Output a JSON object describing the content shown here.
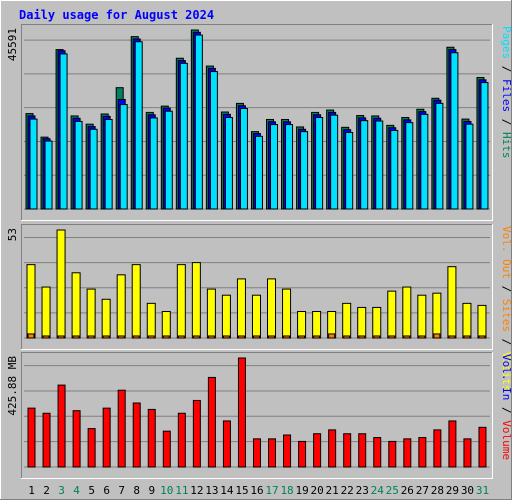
{
  "title": "Daily usage for August 2024",
  "colors": {
    "background": "#c0c0c0",
    "title": "#0000ff",
    "hits": "#00805c",
    "files": "#0000ff",
    "pages": "#00e0ff",
    "visits": "#ffff00",
    "sites": "#ff8000",
    "volume": "#ff0000",
    "weekend_day": "#00805c",
    "weekday": "#000000"
  },
  "chart_data": [
    {
      "type": "bar",
      "name": "top",
      "ylabel": "45591",
      "legend": [
        "Hits",
        "Files",
        "Pages"
      ],
      "legend_separator": " / ",
      "ymax": 45591,
      "x": [
        1,
        2,
        3,
        4,
        5,
        6,
        7,
        8,
        9,
        10,
        11,
        12,
        13,
        14,
        15,
        16,
        17,
        18,
        19,
        20,
        21,
        22,
        23,
        24,
        25,
        26,
        27,
        28,
        29,
        30,
        31
      ],
      "series": [
        {
          "name": "Hits",
          "values": [
            24300,
            18300,
            40600,
            23700,
            21600,
            24200,
            30900,
            43900,
            24600,
            26200,
            38400,
            45591,
            36400,
            24700,
            26900,
            19700,
            22800,
            22800,
            20900,
            24600,
            25200,
            20800,
            23800,
            23700,
            21300,
            23300,
            25400,
            28200,
            41200,
            22900,
            33500
          ]
        },
        {
          "name": "Files",
          "values": [
            23700,
            17900,
            40300,
            23100,
            21000,
            23600,
            27900,
            43300,
            24000,
            25700,
            37800,
            45000,
            35800,
            24100,
            26300,
            19200,
            22200,
            22200,
            20300,
            24000,
            24600,
            20200,
            23200,
            23100,
            20700,
            22700,
            24800,
            27700,
            40600,
            22300,
            32900
          ]
        },
        {
          "name": "Pages",
          "values": [
            22900,
            17300,
            39500,
            22300,
            20300,
            22800,
            26600,
            42600,
            23200,
            24900,
            37100,
            44300,
            35000,
            23300,
            25600,
            18500,
            21500,
            21500,
            19700,
            23300,
            23900,
            19500,
            22500,
            22400,
            20000,
            22000,
            24100,
            26900,
            39800,
            21600,
            32200
          ]
        }
      ]
    },
    {
      "type": "bar",
      "name": "middle",
      "ylabel": "53",
      "legend": [
        "Visits",
        "Sites",
        "Vol. Out"
      ],
      "legend_separator": " / ",
      "ymax": 53,
      "x": [
        1,
        2,
        3,
        4,
        5,
        6,
        7,
        8,
        9,
        10,
        11,
        12,
        13,
        14,
        15,
        16,
        17,
        18,
        19,
        20,
        21,
        22,
        23,
        24,
        25,
        26,
        27,
        28,
        29,
        30,
        31
      ],
      "series": [
        {
          "name": "Visits",
          "values": [
            36,
            25,
            53,
            32,
            24,
            19,
            31,
            36,
            17,
            13,
            36,
            37,
            24,
            21,
            29,
            21,
            29,
            24,
            13,
            13,
            13,
            17,
            15,
            15,
            23,
            25,
            21,
            22,
            35,
            17,
            16
          ]
        },
        {
          "name": "Sites",
          "values": [
            2,
            1,
            1,
            1,
            1,
            1,
            1,
            1,
            1,
            1,
            1,
            1,
            1,
            1,
            1,
            1,
            1,
            1,
            1,
            1,
            2,
            1,
            1,
            1,
            1,
            1,
            1,
            2,
            1,
            1,
            1
          ]
        }
      ]
    },
    {
      "type": "bar",
      "name": "bottom",
      "ylabel": "425.88 MB",
      "legend": [
        "Volume",
        "Vol. In"
      ],
      "legend_separator": " / ",
      "ymax": 425.88,
      "x": [
        1,
        2,
        3,
        4,
        5,
        6,
        7,
        8,
        9,
        10,
        11,
        12,
        13,
        14,
        15,
        16,
        17,
        18,
        19,
        20,
        21,
        22,
        23,
        24,
        25,
        26,
        27,
        28,
        29,
        30,
        31
      ],
      "series": [
        {
          "name": "Volume",
          "values": [
            230,
            210,
            320,
            220,
            150,
            230,
            300,
            250,
            225,
            140,
            210,
            260,
            350,
            180,
            425.88,
            110,
            110,
            125,
            100,
            130,
            145,
            130,
            130,
            115,
            100,
            110,
            115,
            145,
            180,
            110,
            155
          ]
        }
      ]
    }
  ],
  "days": [
    "1",
    "2",
    "3",
    "4",
    "5",
    "6",
    "7",
    "8",
    "9",
    "10",
    "11",
    "12",
    "13",
    "14",
    "15",
    "16",
    "17",
    "18",
    "19",
    "20",
    "21",
    "22",
    "23",
    "24",
    "25",
    "26",
    "27",
    "28",
    "29",
    "30",
    "31"
  ],
  "weekend_days": [
    "3",
    "4",
    "10",
    "11",
    "17",
    "18",
    "24",
    "25",
    "31"
  ]
}
